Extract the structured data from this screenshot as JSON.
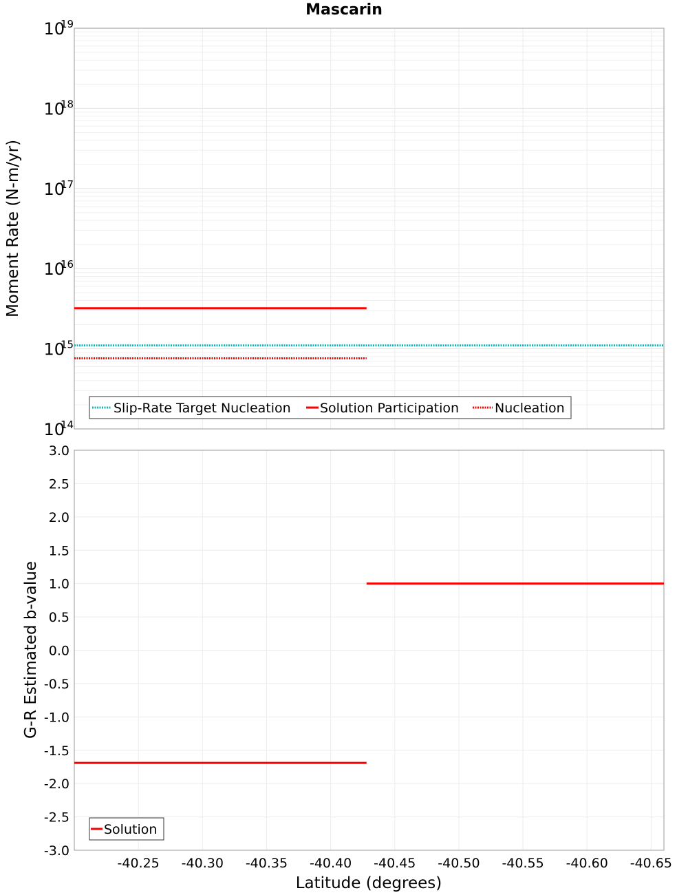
{
  "chart_data": [
    {
      "type": "line",
      "title": "Mascarin",
      "xlabel": "",
      "ylabel": "Moment Rate (N-m/yr)",
      "yscale": "log",
      "ylim": [
        100000000000000.0,
        1e+19
      ],
      "xlim": [
        -40.2,
        -40.66
      ],
      "ytick_exponents": [
        14,
        15,
        16,
        17,
        18,
        19
      ],
      "ytick_base": "10",
      "grid": true,
      "legend_position": "bottom-left",
      "series": [
        {
          "name": "Slip-Rate Target Nucleation",
          "style": "dotted",
          "color": "#17b3b3",
          "points": [
            [
              -40.2,
              1100000000000000.0
            ],
            [
              -40.66,
              1100000000000000.0
            ]
          ]
        },
        {
          "name": "Solution Participation",
          "style": "solid",
          "color": "#ff0000",
          "points": [
            [
              -40.2,
              3200000000000000.0
            ],
            [
              -40.428,
              3200000000000000.0
            ]
          ]
        },
        {
          "name": "Nucleation",
          "style": "dotted",
          "color": "#ff0000",
          "points": [
            [
              -40.2,
              760000000000000.0
            ],
            [
              -40.428,
              760000000000000.0
            ]
          ]
        }
      ]
    },
    {
      "type": "line",
      "xlabel": "Latitude (degrees)",
      "ylabel": "G-R Estimated b-value",
      "ylim": [
        -3.0,
        3.0
      ],
      "xlim": [
        -40.2,
        -40.66
      ],
      "yticks": [
        "3.0",
        "2.5",
        "2.0",
        "1.5",
        "1.0",
        "0.5",
        "0.0",
        "-0.5",
        "-1.0",
        "-1.5",
        "-2.0",
        "-2.5",
        "-3.0"
      ],
      "xticks": [
        "-40.25",
        "-40.30",
        "-40.35",
        "-40.40",
        "-40.45",
        "-40.50",
        "-40.55",
        "-40.60",
        "-40.65"
      ],
      "grid": true,
      "legend_position": "bottom-left",
      "series": [
        {
          "name": "Solution",
          "style": "solid",
          "color": "#ff0000",
          "segments": [
            [
              [
                -40.2,
                -1.69
              ],
              [
                -40.428,
                -1.69
              ]
            ],
            [
              [
                -40.428,
                1.0
              ],
              [
                -40.66,
                1.0
              ]
            ]
          ]
        }
      ]
    }
  ]
}
